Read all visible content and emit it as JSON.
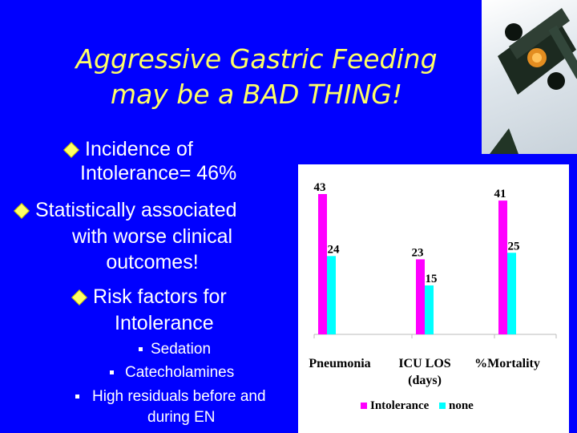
{
  "title": {
    "line1": "Aggressive Gastric Feeding",
    "line2": "may be a BAD THING!"
  },
  "bullets": {
    "b1a": "Incidence of",
    "b1b": "Intolerance= 46%",
    "b2a": "Statistically associated",
    "b2b": "with worse clinical",
    "b2c": "outcomes!",
    "b3a": "Risk factors for",
    "b3b": "Intolerance",
    "s1": "Sedation",
    "s2": "Catecholamines",
    "s3a": "High residuals before and",
    "s3b": "during EN"
  },
  "colors": {
    "background": "#0000ff",
    "title": "#ffff66",
    "intolerance": "#ff00ff",
    "none": "#00ffff"
  },
  "chart_data": {
    "type": "bar",
    "categories": [
      "Pneumonia",
      "ICU LOS",
      "%Mortality"
    ],
    "category_sublabels": [
      "",
      "(days)",
      ""
    ],
    "series": [
      {
        "name": "Intolerance",
        "values": [
          43,
          23,
          41
        ]
      },
      {
        "name": "none",
        "values": [
          24,
          15,
          25
        ]
      }
    ],
    "ylim": [
      0,
      45
    ],
    "legend_position": "bottom",
    "grid": false
  }
}
